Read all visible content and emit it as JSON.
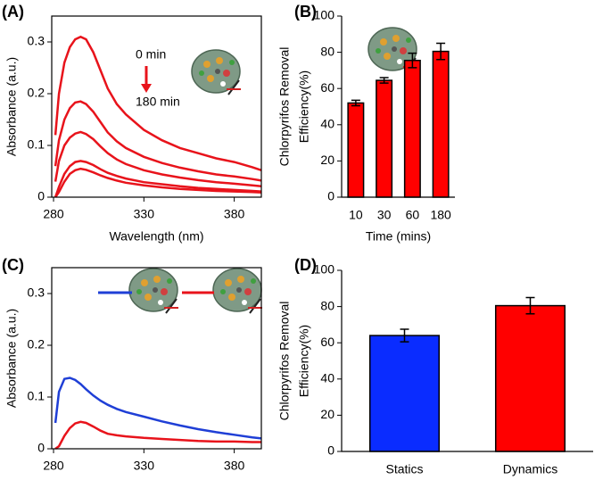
{
  "chart_data": [
    {
      "type": "line",
      "label": "(A)",
      "xlabel": "Wavelength (nm)",
      "ylabel": [
        "Absorbance (a.u.)"
      ],
      "annotations": [
        "0 min",
        "180 min"
      ],
      "xlim": [
        279,
        395
      ],
      "xticks": [
        280,
        330,
        380
      ],
      "ylim": [
        0,
        0.35
      ],
      "yticks": [
        0,
        0.1,
        0.2,
        0.3
      ],
      "x": [
        281,
        283,
        286,
        289,
        292,
        295,
        298,
        302,
        306,
        310,
        315,
        320,
        330,
        340,
        350,
        360,
        370,
        380,
        390,
        395
      ],
      "series": [
        {
          "color": "#e8131b",
          "values": [
            0.12,
            0.2,
            0.26,
            0.29,
            0.305,
            0.31,
            0.305,
            0.28,
            0.245,
            0.21,
            0.18,
            0.16,
            0.13,
            0.11,
            0.095,
            0.085,
            0.075,
            0.068,
            0.058,
            0.052
          ]
        },
        {
          "color": "#e8131b",
          "values": [
            0.06,
            0.11,
            0.15,
            0.172,
            0.183,
            0.185,
            0.18,
            0.165,
            0.145,
            0.125,
            0.108,
            0.095,
            0.078,
            0.066,
            0.057,
            0.05,
            0.044,
            0.04,
            0.035,
            0.032
          ]
        },
        {
          "color": "#e8131b",
          "values": [
            0.03,
            0.07,
            0.1,
            0.115,
            0.123,
            0.126,
            0.122,
            0.112,
            0.098,
            0.085,
            0.073,
            0.064,
            0.052,
            0.044,
            0.038,
            0.033,
            0.029,
            0.026,
            0.023,
            0.021
          ]
        },
        {
          "color": "#e8131b",
          "values": [
            0,
            0.02,
            0.045,
            0.06,
            0.068,
            0.07,
            0.068,
            0.062,
            0.054,
            0.047,
            0.041,
            0.036,
            0.029,
            0.025,
            0.021,
            0.018,
            0.016,
            0.014,
            0.012,
            0.011
          ]
        },
        {
          "color": "#e8131b",
          "values": [
            0,
            0.01,
            0.03,
            0.045,
            0.052,
            0.055,
            0.053,
            0.048,
            0.042,
            0.037,
            0.032,
            0.028,
            0.023,
            0.019,
            0.016,
            0.014,
            0.012,
            0.011,
            0.01,
            0.009
          ]
        }
      ]
    },
    {
      "type": "bar",
      "label": "(B)",
      "xlabel": "Time (mins)",
      "ylabel": [
        "Chlorpyrifos Removal",
        "Efficiency(%)"
      ],
      "categories": [
        "10",
        "30",
        "60",
        "180"
      ],
      "values": [
        52,
        64.5,
        75.5,
        80.5
      ],
      "errors": [
        1.5,
        1.5,
        4,
        4.5
      ],
      "colors": [
        "#ff0000",
        "#ff0000",
        "#ff0000",
        "#ff0000"
      ],
      "ylim": [
        0,
        100
      ],
      "yticks": [
        0,
        20,
        40,
        60,
        80,
        100
      ]
    },
    {
      "type": "line",
      "label": "(C)",
      "ylabel": [
        "Absorbance (a.u.)"
      ],
      "xlim": [
        279,
        395
      ],
      "xticks": [
        280,
        330,
        380
      ],
      "ylim": [
        0,
        0.35
      ],
      "yticks": [
        0,
        0.1,
        0.2,
        0.3
      ],
      "x": [
        281,
        283,
        286,
        289,
        292,
        295,
        298,
        302,
        306,
        310,
        315,
        320,
        330,
        340,
        350,
        360,
        370,
        380,
        390,
        395
      ],
      "series": [
        {
          "color": "#1f3fd6",
          "values": [
            0.05,
            0.11,
            0.135,
            0.137,
            0.133,
            0.125,
            0.115,
            0.103,
            0.093,
            0.085,
            0.077,
            0.071,
            0.062,
            0.053,
            0.045,
            0.038,
            0.032,
            0.027,
            0.022,
            0.02
          ]
        },
        {
          "color": "#e8131b",
          "values": [
            0,
            0.005,
            0.025,
            0.04,
            0.049,
            0.052,
            0.05,
            0.043,
            0.035,
            0.029,
            0.026,
            0.024,
            0.021,
            0.019,
            0.017,
            0.015,
            0.014,
            0.014,
            0.013,
            0.013
          ]
        }
      ]
    },
    {
      "type": "bar",
      "label": "(D)",
      "ylabel": [
        "Chlorpyrifos Removal",
        "Efficiency(%)"
      ],
      "categories": [
        "Statics",
        "Dynamics"
      ],
      "values": [
        64,
        80.5
      ],
      "errors": [
        3.5,
        4.5
      ],
      "colors": [
        "#0a2cff",
        "#ff0000"
      ],
      "ylim": [
        0,
        100
      ],
      "yticks": [
        0,
        20,
        40,
        60,
        80,
        100
      ]
    }
  ]
}
